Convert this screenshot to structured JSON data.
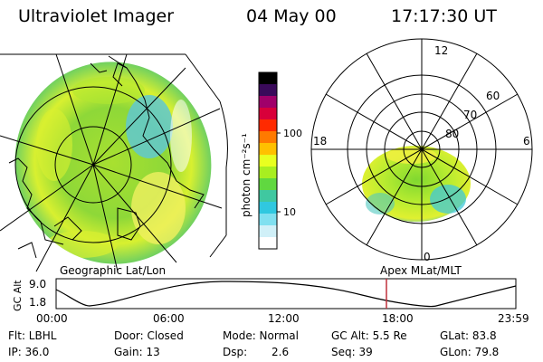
{
  "header": {
    "instrument": "Ultraviolet Imager",
    "date": "04 May 00",
    "time": "17:17:30 UT"
  },
  "left_map": {
    "label": "Geographic Lat/Lon"
  },
  "colorbar": {
    "unit_label": "photon cm⁻²s⁻¹",
    "ticks": [
      "100",
      "10"
    ],
    "colors": [
      "#000000",
      "#3a0a5a",
      "#a0006a",
      "#d8003a",
      "#ff2a00",
      "#ff7a00",
      "#ffc000",
      "#e8ff20",
      "#a8ee20",
      "#60d840",
      "#40c8a0",
      "#30c8e0",
      "#80e0f0",
      "#d0f0f8",
      "#ffffff"
    ]
  },
  "polar_plot": {
    "label": "Apex MLat/MLT",
    "mlt_labels": {
      "top": "12",
      "left": "18",
      "right": "6",
      "bottom": "0"
    },
    "lat_labels": [
      "60",
      "70",
      "80"
    ]
  },
  "altitude_chart": {
    "ylabel": "GC Alt",
    "yticks": [
      "9.0",
      "1.8"
    ],
    "xticks": [
      "00:00",
      "06:00",
      "12:00",
      "18:00",
      "23:59"
    ],
    "marker_color": "#c0303a"
  },
  "info": {
    "flt": "Flt: LBHL",
    "ip": "IP: 36.0",
    "door": "Door: Closed",
    "gain": "Gain: 13",
    "mode": "Mode: Normal",
    "dsp_label": "Dsp:",
    "dsp_value": "2.6",
    "gc_alt": "GC Alt: 5.5 Re",
    "seq": "Seq: 39",
    "glat": "GLat: 83.8",
    "glon": "GLon: 79.8"
  }
}
